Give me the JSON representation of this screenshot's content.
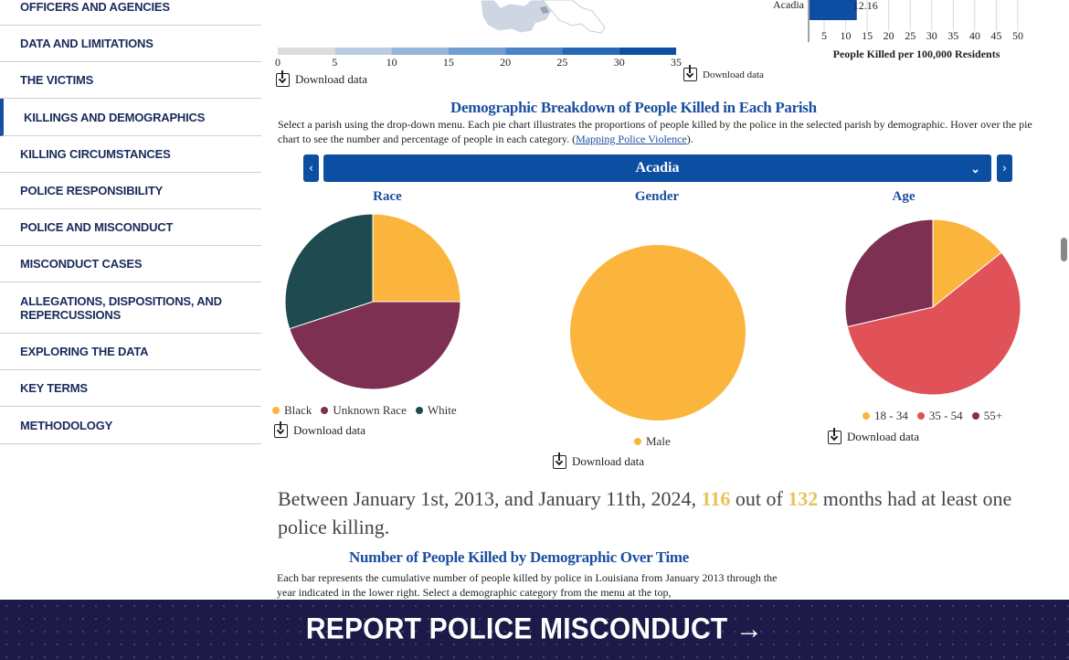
{
  "sidebar": {
    "items": [
      {
        "label": "OFFICERS AND AGENCIES"
      },
      {
        "label": "DATA AND LIMITATIONS"
      },
      {
        "label": "THE VICTIMS"
      },
      {
        "label": "KILLINGS AND DEMOGRAPHICS",
        "active": true
      },
      {
        "label": "KILLING CIRCUMSTANCES"
      },
      {
        "label": "POLICE RESPONSIBILITY"
      },
      {
        "label": "POLICE AND MISCONDUCT"
      },
      {
        "label": "MISCONDUCT CASES"
      },
      {
        "label": "ALLEGATIONS, DISPOSITIONS, AND REPERCUSSIONS"
      },
      {
        "label": "EXPLORING THE DATA"
      },
      {
        "label": "KEY TERMS"
      },
      {
        "label": "METHODOLOGY"
      }
    ]
  },
  "map_legend": {
    "ticks": [
      "0",
      "5",
      "10",
      "15",
      "20",
      "25",
      "30",
      "35"
    ],
    "colors": [
      "#dcdcdc",
      "#b8cde4",
      "#94b6dc",
      "#6f9dd2",
      "#4a84c4",
      "#2569b6",
      "#0b4ea2"
    ],
    "download_label": "Download data"
  },
  "bar_chart": {
    "category": "Acadia",
    "value_label": "12.16",
    "ticks": [
      "5",
      "10",
      "15",
      "20",
      "25",
      "30",
      "35",
      "40",
      "45",
      "50"
    ],
    "xlabel": "People Killed per 100,000 Residents",
    "download_label": "Download data"
  },
  "demographics": {
    "title": "Demographic Breakdown of People Killed in Each Parish",
    "description_before": "Select a parish using the drop-down menu. Each pie chart illustrates the proportions of people killed by the police in the selected parish by demographic. Hover over the pie chart to see the number and percentage of people in each category. (",
    "description_link": "Mapping Police Violence",
    "description_after": ").",
    "selected_parish": "Acadia",
    "prev_icon": "‹",
    "next_icon": "›",
    "chevron_icon": "⌄",
    "download_label": "Download data"
  },
  "chart_data": [
    {
      "type": "pie",
      "title": "Race",
      "categories": [
        "Black",
        "Unknown Race",
        "White"
      ],
      "values": [
        25,
        45,
        30
      ],
      "colors": [
        "#fbb53c",
        "#7d3052",
        "#1f4a4f"
      ]
    },
    {
      "type": "pie",
      "title": "Gender",
      "categories": [
        "Male"
      ],
      "values": [
        100
      ],
      "colors": [
        "#fbb53c"
      ]
    },
    {
      "type": "pie",
      "title": "Age",
      "categories": [
        "18 - 34",
        "35 - 54",
        "55+"
      ],
      "values": [
        14.3,
        57.1,
        28.6
      ],
      "colors": [
        "#fbb53c",
        "#e05257",
        "#7d3052"
      ]
    }
  ],
  "stat": {
    "part1": "Between January 1st, 2013, and January 11th, 2024,",
    "highlight1": "116",
    "part2": "out of",
    "highlight2": "132",
    "part3": "months had at least one police killing."
  },
  "over_time": {
    "title": "Number of People Killed by Demographic Over Time",
    "description": "Each bar represents the cumulative number of people killed by police in Louisiana from January 2013 through the year indicated in the lower right. Select a demographic category from the menu at the top,"
  },
  "banner": {
    "label": "REPORT POLICE MISCONDUCT →"
  }
}
